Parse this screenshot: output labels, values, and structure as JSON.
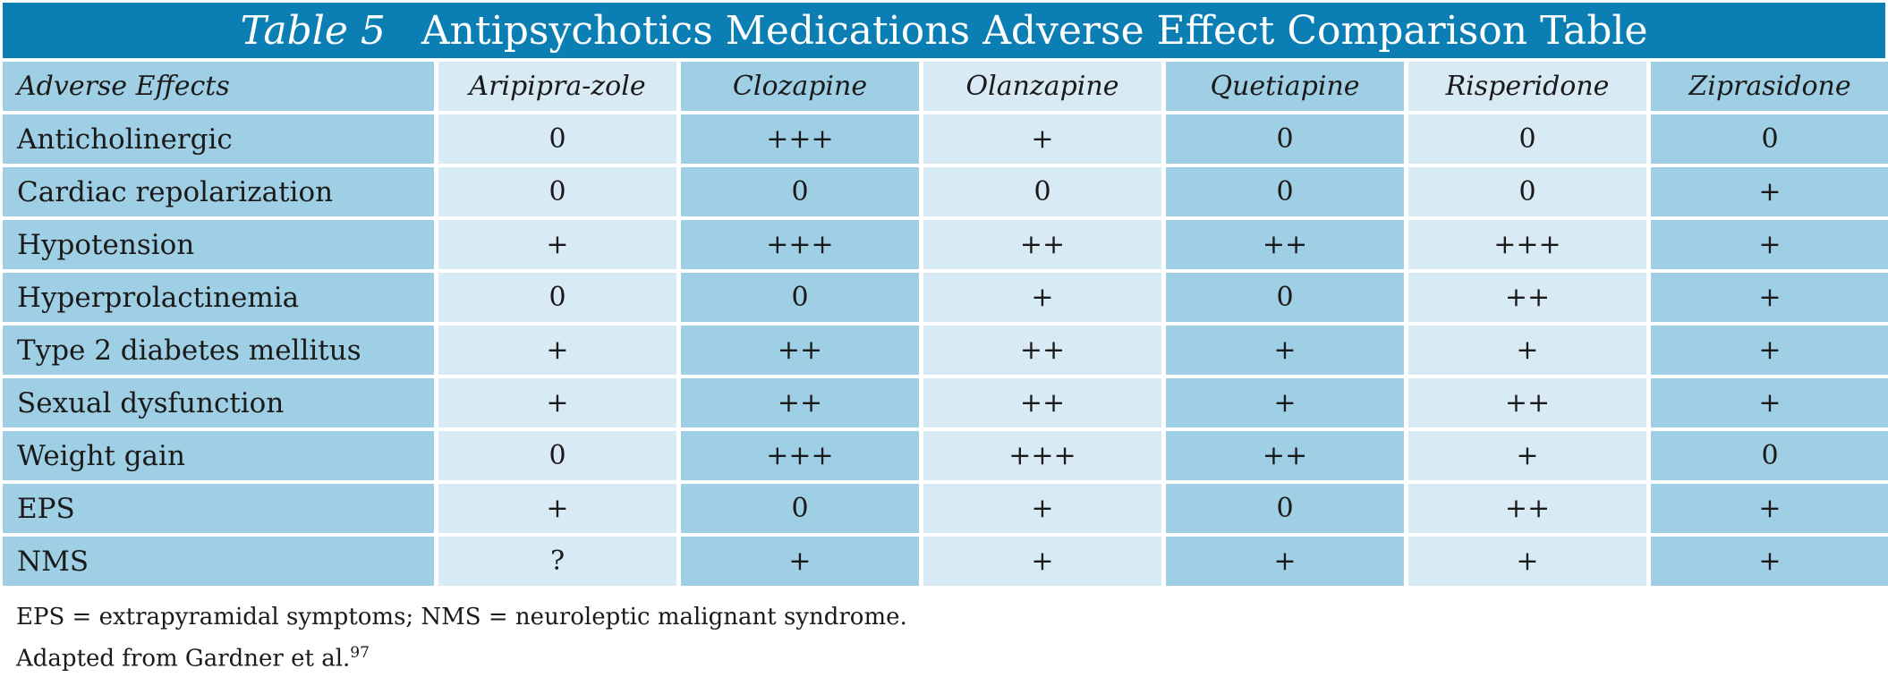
{
  "title": {
    "label": "Table 5",
    "text": "Antipsychotics Medications Adverse Effect Comparison Table"
  },
  "table": {
    "header": [
      "Adverse Effects",
      "Aripipra-zole",
      "Clozapine",
      "Olanzapine",
      "Quetiapine",
      "Risperidone",
      "Ziprasidone"
    ],
    "rows": [
      {
        "label": "Anticholinergic",
        "values": [
          "0",
          "+++",
          "+",
          "0",
          "0",
          "0"
        ]
      },
      {
        "label": "Cardiac repolarization",
        "values": [
          "0",
          "0",
          "0",
          "0",
          "0",
          "+"
        ]
      },
      {
        "label": "Hypotension",
        "values": [
          "+",
          "+++",
          "++",
          "++",
          "+++",
          "+"
        ]
      },
      {
        "label": "Hyperprolactinemia",
        "values": [
          "0",
          "0",
          "+",
          "0",
          "++",
          "+"
        ]
      },
      {
        "label": "Type 2 diabetes mellitus",
        "values": [
          "+",
          "++",
          "++",
          "+",
          "+",
          "+"
        ]
      },
      {
        "label": "Sexual dysfunction",
        "values": [
          "+",
          "++",
          "++",
          "+",
          "++",
          "+"
        ]
      },
      {
        "label": "Weight gain",
        "values": [
          "0",
          "+++",
          "+++",
          "++",
          "+",
          "0"
        ]
      },
      {
        "label": "EPS",
        "values": [
          "+",
          "0",
          "+",
          "0",
          "++",
          "+"
        ]
      },
      {
        "label": "NMS",
        "values": [
          "?",
          "+",
          "+",
          "+",
          "+",
          "+"
        ]
      }
    ]
  },
  "footnotes": {
    "abbreviations": "EPS = extrapyramidal symptoms; NMS = neuroleptic malignant syndrome.",
    "source": "Adapted from Gardner et al.",
    "source_ref": "97"
  },
  "colors": {
    "title_bar": "#0b7fb4",
    "cell_dark": "#9fcfe4",
    "cell_light": "#d8eaf3"
  }
}
